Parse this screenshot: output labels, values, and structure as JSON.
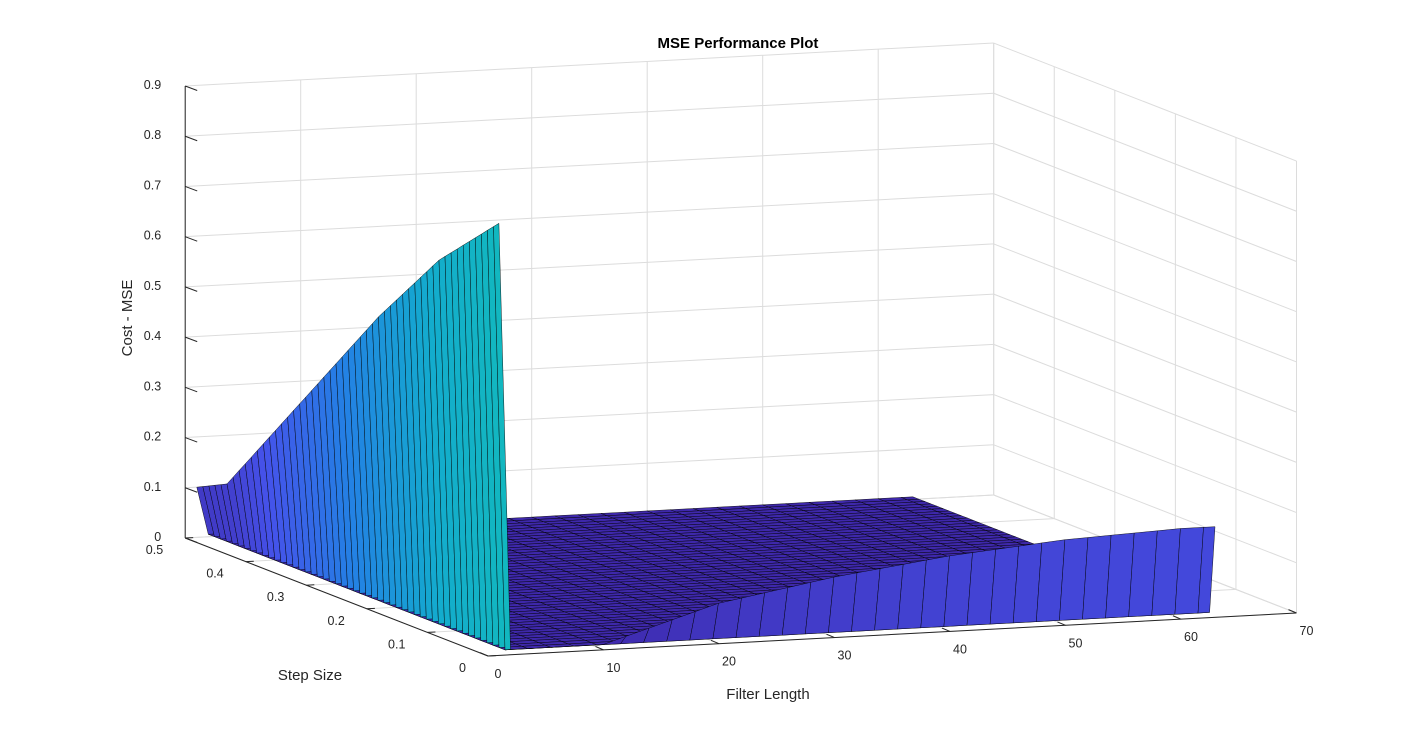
{
  "chart_data": {
    "type": "surface",
    "title": "MSE Performance Plot",
    "xlabel": "Filter Length",
    "ylabel": "Step Size",
    "zlabel": "Cost - MSE",
    "xlim": [
      0,
      70
    ],
    "ylim": [
      0,
      0.5
    ],
    "zlim": [
      0,
      0.9
    ],
    "xticks": [
      "0",
      "10",
      "20",
      "30",
      "40",
      "50",
      "60",
      "70"
    ],
    "yticks": [
      "0",
      "0.1",
      "0.2",
      "0.3",
      "0.4",
      "0.5"
    ],
    "zticks": [
      "0",
      "0.1",
      "0.2",
      "0.3",
      "0.4",
      "0.5",
      "0.6",
      "0.7",
      "0.8",
      "0.9"
    ],
    "grid": true,
    "colormap": "parula",
    "colors": {
      "low": "#3e26a8",
      "mid": "#13beb8",
      "high": "#f9fb15"
    },
    "filter_lengths": [
      1,
      10,
      20,
      30,
      40,
      50,
      60
    ],
    "step_sizes": [
      0.001,
      0.1,
      0.2,
      0.3,
      0.4,
      0.45,
      0.5
    ],
    "mse_at_filter_length_1": [
      0.86,
      0.74,
      0.58,
      0.4,
      0.22,
      0.13,
      0.1
    ],
    "mse_at_small_step_by_filter_length": [
      0.01,
      0.01,
      0.08,
      0.12,
      0.15,
      0.17,
      0.18
    ],
    "mse_floor": 0.005
  }
}
